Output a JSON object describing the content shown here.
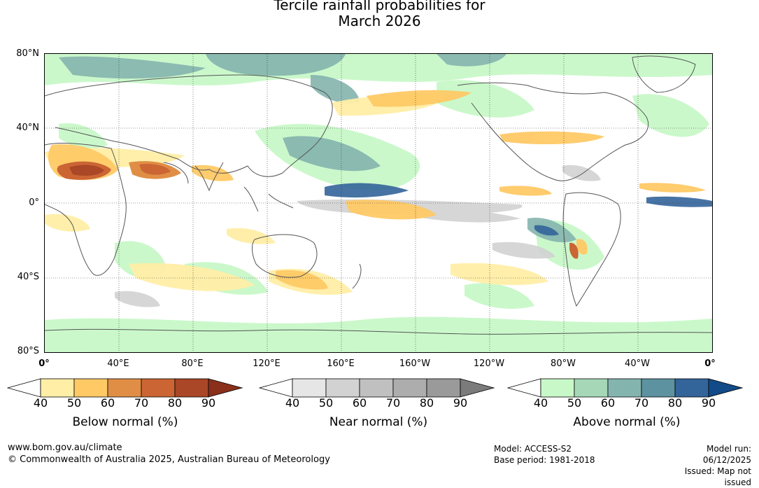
{
  "title_line1": "Tercile rainfall probabilities for",
  "title_line2": "March 2026",
  "map": {
    "latitudes": [
      "80°N",
      "40°N",
      "0°",
      "40°S",
      "80°S"
    ],
    "longitudes": [
      "0°",
      "40°E",
      "80°E",
      "120°E",
      "160°E",
      "160°W",
      "120°W",
      "80°W",
      "40°W",
      "0°"
    ]
  },
  "colorbars": [
    {
      "label": "Below normal (%)",
      "ticks": [
        "40",
        "50",
        "60",
        "70",
        "80",
        "90"
      ],
      "colors": [
        "#ffffff",
        "#ffeea6",
        "#ffc966",
        "#e08e45",
        "#cb6534",
        "#a94727",
        "#8a2f1a"
      ]
    },
    {
      "label": "Near normal (%)",
      "ticks": [
        "40",
        "50",
        "60",
        "70",
        "80",
        "90"
      ],
      "colors": [
        "#ffffff",
        "#e6e6e6",
        "#d2d2d2",
        "#c0c0c0",
        "#adadad",
        "#9a9a9a",
        "#7b7b7b"
      ]
    },
    {
      "label": "Above normal (%)",
      "ticks": [
        "40",
        "50",
        "60",
        "70",
        "80",
        "90"
      ],
      "colors": [
        "#ffffff",
        "#c8f8c8",
        "#a6d8b8",
        "#84b4ae",
        "#5d92a0",
        "#33649a",
        "#134b88"
      ]
    }
  ],
  "footer": {
    "website": "www.bom.gov.au/climate",
    "copyright": "© Commonwealth of Australia 2025, Australian Bureau of Meteorology",
    "model": "Model: ACCESS-S2",
    "base_period": "Base period: 1981-2018",
    "model_run": "Model run: 06/12/2025",
    "issued": "Issued: Map not issued"
  }
}
